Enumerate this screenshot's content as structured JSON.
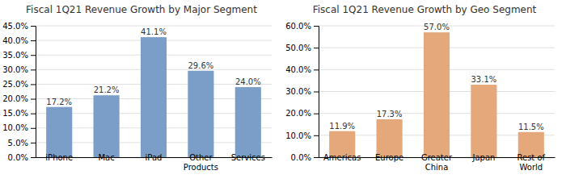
{
  "chart_data": [
    {
      "type": "bar",
      "title": "Fiscal 1Q21 Revenue Growth by Major Segment",
      "categories": [
        "iPhone",
        "Mac",
        "iPad",
        "Other\nProducts",
        "Services"
      ],
      "values": [
        17.2,
        21.2,
        41.1,
        29.6,
        24.0
      ],
      "value_labels": [
        "17.2%",
        "21.2%",
        "41.1%",
        "29.6%",
        "24.0%"
      ],
      "data_labels": true,
      "color": "#7B9EC9",
      "ylim": [
        0,
        45
      ],
      "yticks": [
        {
          "value": 0,
          "label": "0.0%"
        },
        {
          "value": 5,
          "label": "5.0%"
        },
        {
          "value": 10,
          "label": "10.0%"
        },
        {
          "value": 15,
          "label": "15.0%"
        },
        {
          "value": 20,
          "label": "20.0%"
        },
        {
          "value": 25,
          "label": "25.0%"
        },
        {
          "value": 30,
          "label": "30.0%"
        },
        {
          "value": 35,
          "label": "35.0%"
        },
        {
          "value": 40,
          "label": "40.0%"
        },
        {
          "value": 45,
          "label": "45.0%"
        }
      ],
      "grid": true
    },
    {
      "type": "bar",
      "title": "Fiscal 1Q21 Revenue Growth by Geo Segment",
      "categories": [
        "Americas",
        "Europe",
        "Greater\nChina",
        "Japan",
        "Rest of\nWorld"
      ],
      "values": [
        11.9,
        17.3,
        57.0,
        33.1,
        11.5
      ],
      "value_labels": [
        "11.9%",
        "17.3%",
        "57.0%",
        "33.1%",
        "11.5%"
      ],
      "data_labels": true,
      "color": "#E5A87A",
      "ylim": [
        0,
        60
      ],
      "yticks": [
        {
          "value": 0,
          "label": "0.0%"
        },
        {
          "value": 10,
          "label": "10.0%"
        },
        {
          "value": 20,
          "label": "20.0%"
        },
        {
          "value": 30,
          "label": "30.0%"
        },
        {
          "value": 40,
          "label": "40.0%"
        },
        {
          "value": 50,
          "label": "50.0%"
        },
        {
          "value": 60,
          "label": "60.0%"
        }
      ],
      "grid": true
    }
  ]
}
